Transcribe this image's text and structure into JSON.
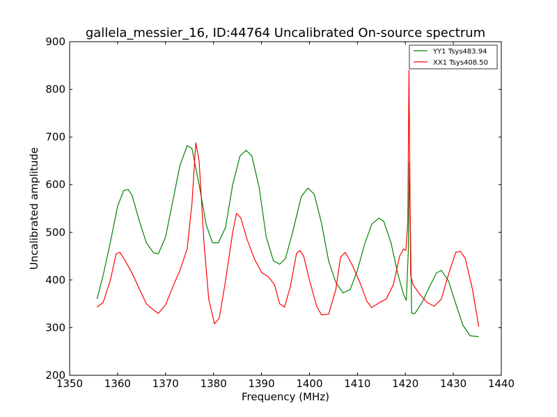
{
  "chart_data": {
    "type": "line",
    "title": "gallela_messier_16, ID:44764 Uncalibrated On-source spectrum",
    "xlabel": "Frequency (MHz)",
    "ylabel": "Uncalibrated amplitude",
    "xlim": [
      1350,
      1440
    ],
    "ylim": [
      200,
      900
    ],
    "xticks": [
      1350,
      1360,
      1370,
      1380,
      1390,
      1400,
      1410,
      1420,
      1430,
      1440
    ],
    "yticks": [
      200,
      300,
      400,
      500,
      600,
      700,
      800,
      900
    ],
    "grid": false,
    "legend_position": "top-right",
    "series": [
      {
        "name": "YY1 Tsys483.94",
        "color": "#008000",
        "x": [
          1355.7,
          1357,
          1358.5,
          1360,
          1361.3,
          1362.2,
          1363,
          1364.5,
          1366,
          1367.5,
          1368.5,
          1370,
          1371.5,
          1373,
          1374.5,
          1375.5,
          1377,
          1378.5,
          1379.8,
          1381,
          1382.5,
          1384,
          1385.5,
          1386.8,
          1388,
          1389.5,
          1391,
          1392.5,
          1393.8,
          1395,
          1396.5,
          1398.3,
          1399.7,
          1401,
          1402.5,
          1404,
          1405.5,
          1407,
          1408.5,
          1410,
          1411.5,
          1413,
          1414.5,
          1415.5,
          1417,
          1418.5,
          1419.6,
          1420.2,
          1420.6,
          1420.85,
          1421.3,
          1422,
          1423.5,
          1425,
          1426.5,
          1427.5,
          1429,
          1430.5,
          1432,
          1433.5,
          1435.3
        ],
        "y": [
          360,
          410,
          480,
          555,
          588,
          590,
          578,
          525,
          478,
          457,
          455,
          490,
          565,
          640,
          682,
          676,
          600,
          515,
          478,
          478,
          510,
          600,
          660,
          672,
          660,
          595,
          490,
          440,
          433,
          445,
          500,
          575,
          593,
          580,
          520,
          440,
          395,
          373,
          380,
          420,
          475,
          517,
          530,
          523,
          478,
          410,
          370,
          357,
          460,
          648,
          330,
          330,
          353,
          385,
          415,
          420,
          398,
          350,
          305,
          283,
          281
        ]
      },
      {
        "name": "XX1 Tsys408.50",
        "color": "#ff0000",
        "x": [
          1355.7,
          1357,
          1358.5,
          1359.7,
          1360.5,
          1361.5,
          1363,
          1364.5,
          1366,
          1367.5,
          1368.5,
          1370,
          1371.5,
          1373,
          1374.5,
          1375.5,
          1376.3,
          1377,
          1378,
          1379,
          1380.2,
          1381.2,
          1382.5,
          1384,
          1384.8,
          1385.7,
          1387,
          1388.5,
          1390,
          1391.5,
          1392.7,
          1393.8,
          1394.8,
          1396,
          1397.3,
          1398,
          1398.8,
          1400,
          1401.5,
          1402.5,
          1404,
          1405.5,
          1406.5,
          1407.5,
          1409,
          1410.5,
          1412,
          1413,
          1414.5,
          1416,
          1417.5,
          1418.8,
          1419.6,
          1420.1,
          1420.5,
          1420.75,
          1421.1,
          1421.6,
          1423,
          1424.5,
          1426,
          1427.5,
          1429,
          1430.5,
          1431.5,
          1432.5,
          1434,
          1435.3
        ],
        "y": [
          343,
          353,
          400,
          455,
          458,
          442,
          415,
          382,
          350,
          337,
          330,
          348,
          385,
          420,
          465,
          560,
          688,
          650,
          480,
          360,
          308,
          320,
          398,
          500,
          540,
          530,
          485,
          445,
          416,
          406,
          390,
          350,
          343,
          385,
          455,
          462,
          450,
          400,
          345,
          327,
          328,
          380,
          448,
          458,
          430,
          395,
          355,
          342,
          352,
          360,
          390,
          450,
          465,
          462,
          520,
          840,
          410,
          390,
          370,
          353,
          345,
          360,
          412,
          458,
          460,
          445,
          380,
          302
        ]
      }
    ]
  }
}
